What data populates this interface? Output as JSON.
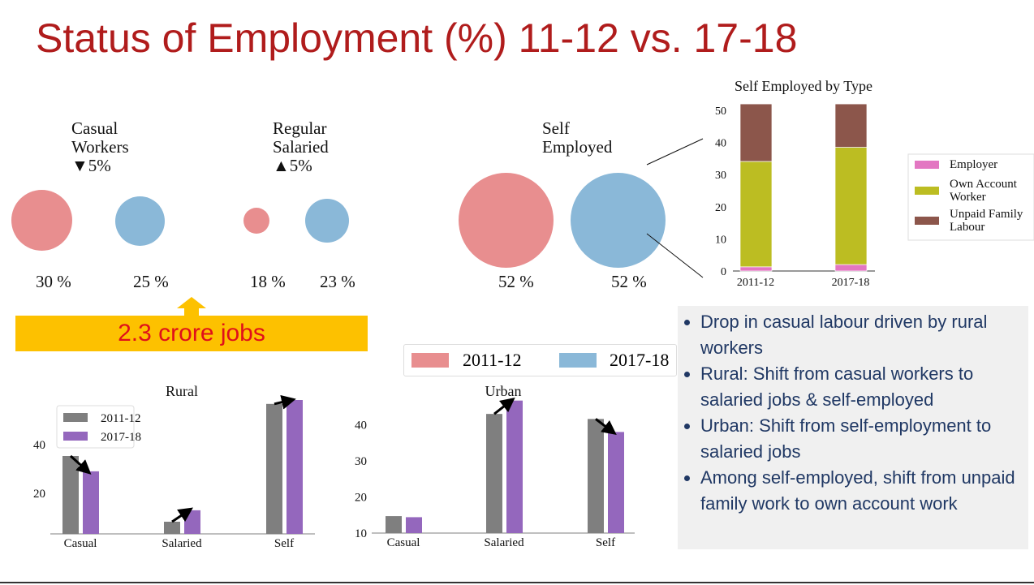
{
  "title": "Status of Employment (%) 11-12 vs. 17-18",
  "bubbles": {
    "casual": {
      "label1": "Casual",
      "label2": "Workers",
      "change": "▼5%",
      "v1": "30 %",
      "v2": "25 %"
    },
    "regular": {
      "label1": "Regular",
      "label2": "Salaried",
      "change": "▲5%",
      "v1": "18 %",
      "v2": "23 %"
    },
    "self": {
      "label1": "Self",
      "label2": "Employed",
      "v1": "52 %",
      "v2": "52 %"
    }
  },
  "jobs_banner": "2.3 crore jobs",
  "year_legend": [
    "2011-12",
    "2017-18"
  ],
  "colors": {
    "y1": "#e88e8f",
    "y2": "#8ab8d8",
    "gray": "#7f7f7f",
    "purple": "#9467bd",
    "employer": "#e377c2",
    "own": "#bcbd22",
    "unpaid": "#8c564b"
  },
  "bullets": [
    "Drop in casual labour driven by rural workers",
    "Rural: Shift from casual workers to salaried jobs & self-employed",
    "Urban: Shift from self-employment to salaried jobs",
    "Among self-employed, shift from unpaid family work to own account work"
  ],
  "chart_data": [
    {
      "type": "bar",
      "stacked": true,
      "title": "Self Employed by Type",
      "categories": [
        "2011-12",
        "2017-18"
      ],
      "series": [
        {
          "name": "Employer",
          "values": [
            1.3,
            2.0
          ]
        },
        {
          "name": "Own Account Worker",
          "values": [
            32.8,
            36.5
          ]
        },
        {
          "name": "Unpaid Family Labour",
          "values": [
            17.9,
            13.5
          ]
        }
      ],
      "yticks": [
        "0",
        "10",
        "20",
        "30",
        "40",
        "50"
      ],
      "ylim": [
        0,
        52
      ],
      "legend": "right"
    },
    {
      "type": "bar",
      "title": "Rural",
      "categories": [
        "Casual",
        "Salaried",
        "Self"
      ],
      "series": [
        {
          "name": "2011-12",
          "values": [
            35.3,
            8.3,
            56.7
          ]
        },
        {
          "name": "2017-18",
          "values": [
            29.0,
            13.0,
            58.3
          ]
        }
      ],
      "yticks": [
        "20",
        "40"
      ],
      "ylim": [
        3.3,
        60
      ],
      "legend": "upper-left"
    },
    {
      "type": "bar",
      "title": "Urban",
      "categories": [
        "Casual",
        "Salaried",
        "Self"
      ],
      "series": [
        {
          "name": "2011-12",
          "values": [
            14.7,
            43.0,
            41.6
          ]
        },
        {
          "name": "2017-18",
          "values": [
            14.4,
            46.7,
            38.0
          ]
        }
      ],
      "yticks": [
        "10",
        "20",
        "30",
        "40"
      ],
      "ylim": [
        10,
        48
      ],
      "legend": "none"
    }
  ]
}
